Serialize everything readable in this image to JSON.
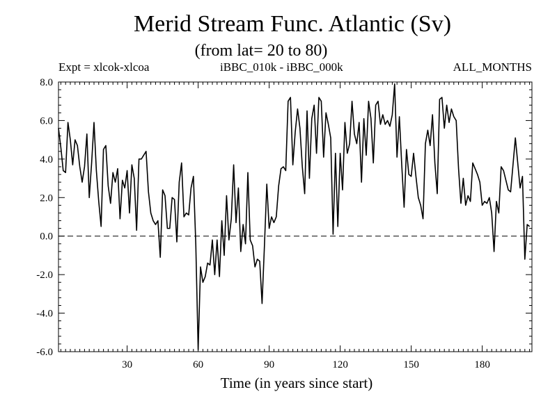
{
  "chart_data": {
    "type": "line",
    "title": "Merid Stream Func. Atlantic (Sv)",
    "subtitle": "(from lat= 20 to 80)",
    "left_label": "Expt = xlcok-xlcoa",
    "center_label": "iBBC_010k - iBBC_000k",
    "right_label": "ALL_MONTHS",
    "xlabel": "Time (in years since start)",
    "ylabel": "",
    "xlim": [
      1,
      201
    ],
    "ylim": [
      -6,
      8
    ],
    "xticks": [
      30,
      60,
      90,
      120,
      150,
      180
    ],
    "xtick_labels": [
      "30",
      "60",
      "90",
      "120",
      "150",
      "180"
    ],
    "yticks": [
      -6,
      -4,
      -2,
      0,
      2,
      4,
      6,
      8
    ],
    "ytick_labels": [
      "-6.0",
      "-4.0",
      "-2.0",
      "0.0",
      "2.0",
      "4.0",
      "6.0",
      "8.0"
    ],
    "zero_line": 0,
    "series": [
      {
        "name": "iBBC_010k - iBBC_000k",
        "x_start": 1,
        "x_step": 1,
        "values": [
          5.6,
          4.6,
          3.4,
          3.3,
          5.9,
          5.0,
          3.7,
          5.0,
          4.7,
          3.6,
          2.8,
          3.6,
          5.3,
          2.0,
          3.8,
          5.9,
          3.4,
          1.8,
          0.5,
          4.5,
          4.7,
          2.6,
          1.7,
          3.3,
          2.8,
          3.5,
          0.9,
          2.9,
          2.5,
          3.4,
          1.2,
          3.7,
          3.0,
          0.3,
          4.0,
          4.0,
          4.2,
          4.4,
          2.3,
          1.2,
          0.8,
          0.6,
          0.8,
          -1.1,
          2.4,
          2.1,
          0.4,
          0.4,
          2.0,
          1.9,
          -0.3,
          2.8,
          3.8,
          1.0,
          1.2,
          1.1,
          2.5,
          3.1,
          -0.4,
          -5.9,
          -1.6,
          -2.4,
          -2.1,
          -1.4,
          -1.5,
          -0.2,
          -2.0,
          -0.2,
          -2.1,
          0.8,
          -1.0,
          2.1,
          -0.2,
          0.9,
          3.7,
          0.7,
          2.5,
          -0.8,
          0.6,
          -0.4,
          3.3,
          -0.2,
          -0.5,
          -1.6,
          -1.2,
          -1.3,
          -3.5,
          -0.5,
          2.7,
          0.4,
          1.0,
          0.7,
          1.0,
          2.6,
          3.5,
          3.6,
          3.4,
          7.0,
          7.2,
          3.7,
          5.4,
          6.6,
          5.6,
          3.6,
          2.2,
          6.5,
          3.0,
          6.1,
          6.8,
          4.3,
          7.2,
          7.0,
          4.1,
          6.4,
          5.8,
          5.1,
          0.1,
          4.3,
          0.5,
          4.3,
          2.4,
          5.9,
          4.3,
          4.8,
          7.0,
          5.3,
          4.8,
          5.9,
          2.8,
          6.1,
          4.2,
          7.0,
          6.1,
          3.8,
          6.8,
          7.0,
          5.8,
          6.3,
          5.8,
          6.0,
          5.7,
          6.3,
          7.9,
          4.1,
          6.2,
          3.7,
          1.5,
          4.5,
          3.2,
          3.1,
          4.3,
          3.1,
          2.0,
          1.6,
          0.9,
          4.8,
          5.5,
          4.7,
          6.3,
          3.8,
          2.2,
          7.1,
          7.2,
          5.6,
          6.8,
          5.9,
          6.6,
          6.2,
          6.0,
          3.5,
          1.7,
          3.0,
          1.6,
          2.1,
          1.8,
          3.8,
          3.5,
          3.2,
          2.8,
          1.6,
          1.8,
          1.7,
          2.0,
          1.2,
          -0.8,
          1.8,
          1.2,
          3.6,
          3.4,
          2.9,
          2.4,
          2.3,
          3.7,
          5.1,
          3.8,
          2.5,
          3.1,
          -1.2,
          0.6,
          0.5
        ]
      }
    ]
  }
}
